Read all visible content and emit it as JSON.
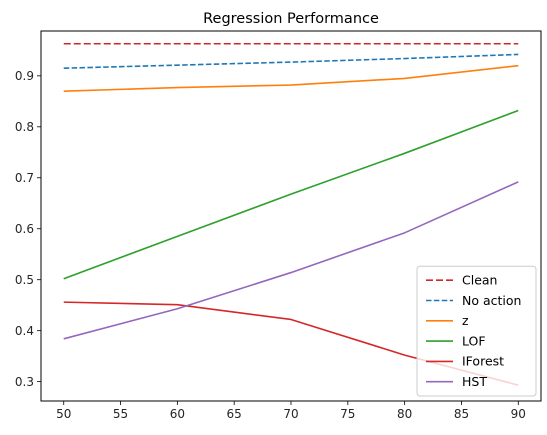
{
  "chart_data": {
    "type": "line",
    "title": "Regression Performance",
    "xlabel": "",
    "ylabel": "",
    "x": [
      50,
      60,
      70,
      80,
      90
    ],
    "xlim": [
      48,
      92
    ],
    "ylim": [
      0.262,
      0.988
    ],
    "xticks": [
      50,
      55,
      60,
      65,
      70,
      75,
      80,
      85,
      90
    ],
    "yticks": [
      0.3,
      0.4,
      0.5,
      0.6,
      0.7,
      0.8,
      0.9
    ],
    "grid": false,
    "legend_position": "lower-right",
    "series": [
      {
        "name": "Clean",
        "color": "#d62728",
        "dash": "dashed-long",
        "values": [
          0.963,
          0.963,
          0.963,
          0.963,
          0.963
        ]
      },
      {
        "name": "No action",
        "color": "#1f77b4",
        "dash": "dashed",
        "values": [
          0.915,
          0.921,
          0.927,
          0.934,
          0.942
        ]
      },
      {
        "name": "z",
        "color": "#ff7f0e",
        "dash": "solid",
        "values": [
          0.87,
          0.877,
          0.882,
          0.895,
          0.92
        ]
      },
      {
        "name": "LOF",
        "color": "#2ca02c",
        "dash": "solid",
        "values": [
          0.502,
          0.585,
          0.668,
          0.748,
          0.832
        ]
      },
      {
        "name": "IForest",
        "color": "#d62728",
        "dash": "solid",
        "values": [
          0.456,
          0.451,
          0.422,
          0.352,
          0.293
        ]
      },
      {
        "name": "HST",
        "color": "#9467bd",
        "dash": "solid",
        "values": [
          0.384,
          0.443,
          0.514,
          0.592,
          0.692
        ]
      }
    ]
  }
}
